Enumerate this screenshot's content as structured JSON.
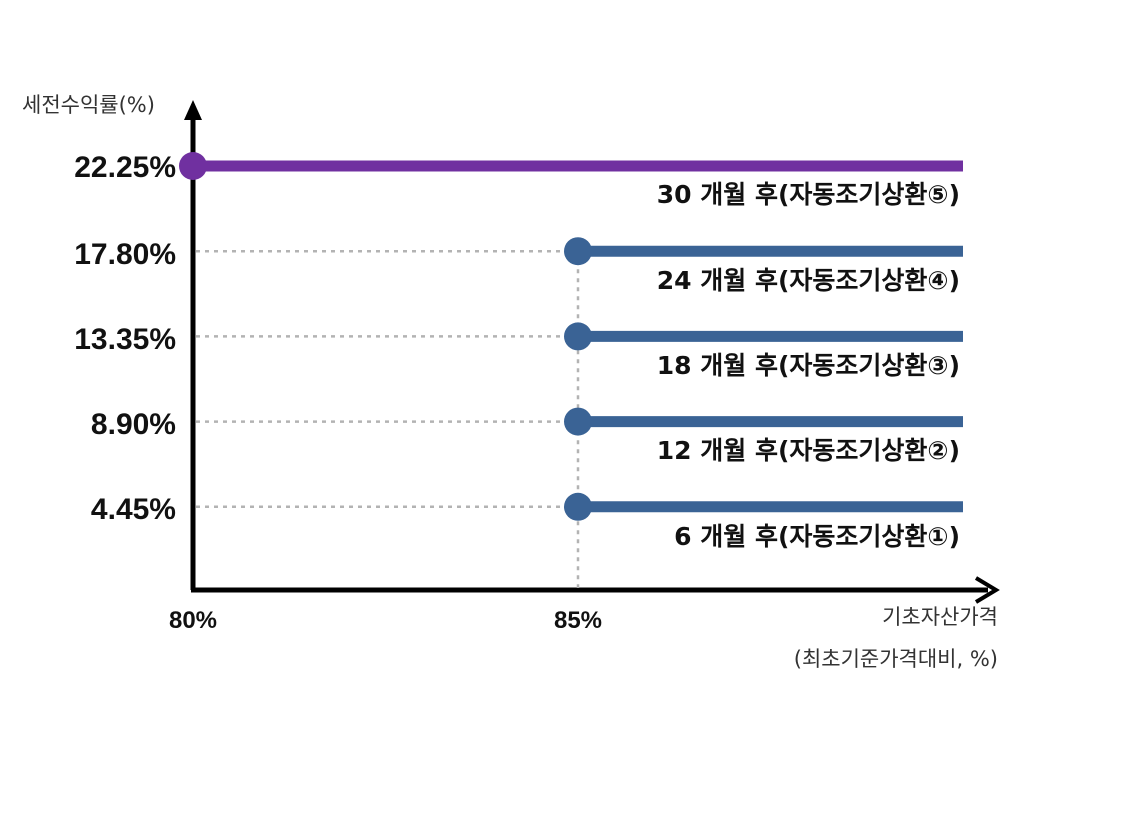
{
  "chart_data": {
    "type": "line",
    "title": "",
    "ylabel": "세전수익률(%)",
    "xlabel": "기초자산가격",
    "xlabel_sub": "(최초기준가격대비, %)",
    "x_ticks": [
      "80%",
      "85%"
    ],
    "y_ticks": [
      "4.45%",
      "8.90%",
      "13.35%",
      "17.80%",
      "22.25%"
    ],
    "x_range": [
      80,
      90
    ],
    "y_range": [
      0,
      22.25
    ],
    "grid": "dotted guides to level points",
    "colors": {
      "purple": "#7030a0",
      "blue": "#3a6395",
      "axis": "#000000",
      "guide": "#b3b3b3"
    },
    "series": [
      {
        "label": "30 개월 후(자동조기상환⑤)",
        "y": 22.25,
        "x_start": 80,
        "color": "#7030a0"
      },
      {
        "label": "24 개월 후(자동조기상환④)",
        "y": 17.8,
        "x_start": 85,
        "color": "#3a6395"
      },
      {
        "label": "18 개월 후(자동조기상환③)",
        "y": 13.35,
        "x_start": 85,
        "color": "#3a6395"
      },
      {
        "label": "12 개월 후(자동조기상환②)",
        "y": 8.9,
        "x_start": 85,
        "color": "#3a6395"
      },
      {
        "label": "6 개월 후(자동조기상환①)",
        "y": 4.45,
        "x_start": 85,
        "color": "#3a6395"
      }
    ]
  }
}
